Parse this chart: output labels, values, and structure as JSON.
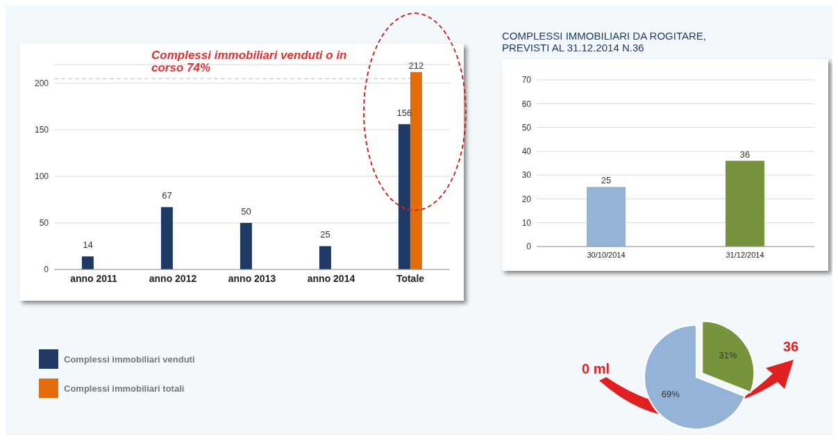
{
  "chart_data": [
    {
      "type": "bar",
      "categories": [
        "anno 2011",
        "anno 2012",
        "anno 2013",
        "anno 2014",
        "Totale"
      ],
      "series": [
        {
          "name": "Complessi immobiliari venduti",
          "color": "#1f3864",
          "values": [
            14,
            67,
            50,
            25,
            156
          ]
        },
        {
          "name": "Complessi immobiliari totali",
          "color": "#e46c0a",
          "values": [
            null,
            null,
            null,
            null,
            212
          ]
        }
      ],
      "ylim": [
        0,
        220
      ],
      "yticks": [
        0,
        50,
        100,
        150,
        200
      ],
      "grid": "y",
      "legend": "bottom left",
      "data_labels": true,
      "ref_lines": [
        {
          "axis": "y",
          "value": 205,
          "color": "#bbbbbb",
          "line_style": "dashed"
        }
      ],
      "annotations": [
        "Complessi immobiliari  venduti o in corso 74%"
      ]
    },
    {
      "type": "bar",
      "title": "COMPLESSI IMMOBILIARI DA ROGITARE, PREVISTI AL 31.12.2014 N.36",
      "categories": [
        "30/10/2014",
        "31/12/2014"
      ],
      "values": [
        25,
        36
      ],
      "colors": [
        "#95b3d7",
        "#77933c"
      ],
      "ylim": [
        0,
        70
      ],
      "yticks": [
        0,
        10,
        20,
        30,
        40,
        50,
        60,
        70
      ],
      "grid": "y",
      "data_labels": true
    },
    {
      "type": "pie",
      "categories": [
        null,
        null
      ],
      "values": [
        31,
        69
      ],
      "colors": [
        "#77933c",
        "#95b3d7"
      ],
      "value_labels": [
        "31%",
        "69%"
      ],
      "annotations": [
        "0 ml",
        "36"
      ]
    }
  ]
}
